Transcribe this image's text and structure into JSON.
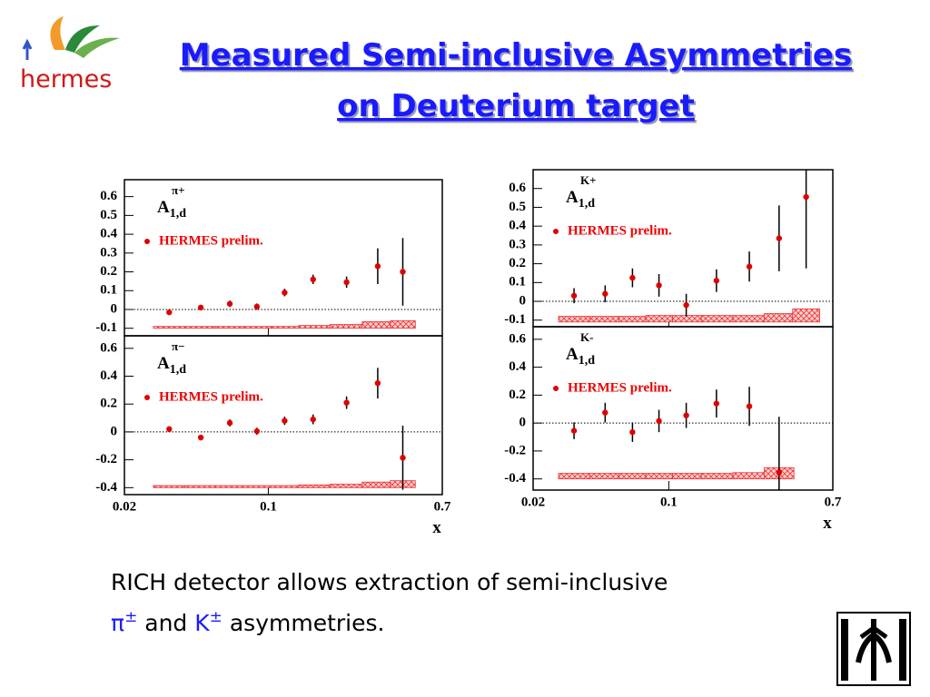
{
  "header": {
    "title_lines": [
      "Measured Semi-inclusive Asymmetries",
      "on Deuterium target"
    ],
    "logo_text": "hermes"
  },
  "chart_data": [
    {
      "type": "scatter",
      "label": "A",
      "label_sup": "π+",
      "label_sub": "1,d",
      "x": [
        0.033,
        0.047,
        0.065,
        0.088,
        0.12,
        0.165,
        0.24,
        0.34,
        0.45
      ],
      "series": [
        {
          "name": "HERMES prelim.",
          "color": "#e00000",
          "values": [
            -0.015,
            0.01,
            0.03,
            0.015,
            0.09,
            0.16,
            0.145,
            0.23,
            0.2
          ],
          "errors": [
            0.015,
            0.015,
            0.017,
            0.017,
            0.02,
            0.025,
            0.03,
            0.095,
            0.18
          ],
          "systematics": [
            0.01,
            0.01,
            0.01,
            0.01,
            0.01,
            0.015,
            0.02,
            0.035,
            0.04
          ]
        }
      ],
      "band_base": -0.1,
      "xlim": [
        0.02,
        0.7
      ],
      "xticks": [
        0.02,
        0.1,
        0.7
      ],
      "log_x": true,
      "ylim": [
        -0.14,
        0.69
      ],
      "yticks": [
        -0.1,
        0,
        0.1,
        0.2,
        0.3,
        0.4,
        0.5,
        0.6
      ]
    },
    {
      "type": "scatter",
      "label": "A",
      "label_sup": "π−",
      "label_sub": "1,d",
      "xlabel": "x",
      "x": [
        0.033,
        0.047,
        0.065,
        0.088,
        0.12,
        0.165,
        0.24,
        0.34,
        0.45
      ],
      "series": [
        {
          "name": "HERMES prelim.",
          "color": "#e00000",
          "values": [
            0.02,
            -0.04,
            0.065,
            0.005,
            0.08,
            0.09,
            0.21,
            0.35,
            -0.185
          ],
          "errors": [
            0.02,
            0.02,
            0.025,
            0.025,
            0.03,
            0.035,
            0.045,
            0.11,
            0.23
          ],
          "systematics": [
            0.015,
            0.015,
            0.015,
            0.015,
            0.015,
            0.02,
            0.025,
            0.04,
            0.05
          ]
        }
      ],
      "band_base": -0.4,
      "xlim": [
        0.02,
        0.7
      ],
      "xticks": [
        0.02,
        0.1,
        0.7
      ],
      "log_x": true,
      "ylim": [
        -0.45,
        0.69
      ],
      "yticks": [
        -0.4,
        -0.2,
        0,
        0.2,
        0.4,
        0.6
      ]
    },
    {
      "type": "scatter",
      "label": "A",
      "label_sup": "K+",
      "label_sub": "1,d",
      "x": [
        0.0325,
        0.047,
        0.065,
        0.089,
        0.123,
        0.176,
        0.26,
        0.37,
        0.51
      ],
      "series": [
        {
          "name": "HERMES prelim.",
          "color": "#e00000",
          "values": [
            0.03,
            0.04,
            0.125,
            0.085,
            -0.02,
            0.11,
            0.185,
            0.335,
            0.555
          ],
          "errors": [
            0.04,
            0.045,
            0.05,
            0.06,
            0.06,
            0.06,
            0.08,
            0.175,
            0.38
          ],
          "systematics": [
            0.03,
            0.03,
            0.03,
            0.035,
            0.035,
            0.035,
            0.035,
            0.045,
            0.07
          ]
        }
      ],
      "band_base": -0.11,
      "xlim": [
        0.02,
        0.7
      ],
      "xticks": [
        0.02,
        0.1,
        0.7
      ],
      "log_x": true,
      "ylim": [
        -0.135,
        0.7
      ],
      "yticks": [
        -0.1,
        0,
        0.1,
        0.2,
        0.3,
        0.4,
        0.5,
        0.6
      ]
    },
    {
      "type": "scatter",
      "label": "A",
      "label_sup": "K-",
      "label_sub": "1,d",
      "xlabel": "x",
      "x": [
        0.0325,
        0.047,
        0.065,
        0.089,
        0.123,
        0.176,
        0.26,
        0.37
      ],
      "series": [
        {
          "name": "HERMES prelim.",
          "color": "#e00000",
          "values": [
            -0.055,
            0.075,
            -0.065,
            0.015,
            0.055,
            0.14,
            0.12,
            -0.355
          ],
          "errors": [
            0.06,
            0.07,
            0.07,
            0.08,
            0.09,
            0.1,
            0.14,
            0.4
          ],
          "systematics": [
            0.04,
            0.04,
            0.04,
            0.04,
            0.04,
            0.04,
            0.045,
            0.08
          ]
        }
      ],
      "band_base": -0.4,
      "xlim": [
        0.02,
        0.7
      ],
      "xticks": [
        0.02,
        0.1,
        0.7
      ],
      "log_x": true,
      "ylim": [
        -0.48,
        0.69
      ],
      "yticks": [
        -0.4,
        -0.2,
        0,
        0.2,
        0.4,
        0.6
      ]
    }
  ],
  "caption": {
    "line1": "RICH detector allows extraction of semi-inclusive",
    "line2": [
      {
        "text": "π",
        "color": "#1a1aff"
      },
      {
        "text": "±",
        "color": "#1a1aff",
        "sup": true
      },
      {
        "text": " and "
      },
      {
        "text": "K",
        "color": "#1a1aff"
      },
      {
        "text": "±",
        "color": "#1a1aff",
        "sup": true
      },
      {
        "text": " asymmetries."
      }
    ]
  }
}
